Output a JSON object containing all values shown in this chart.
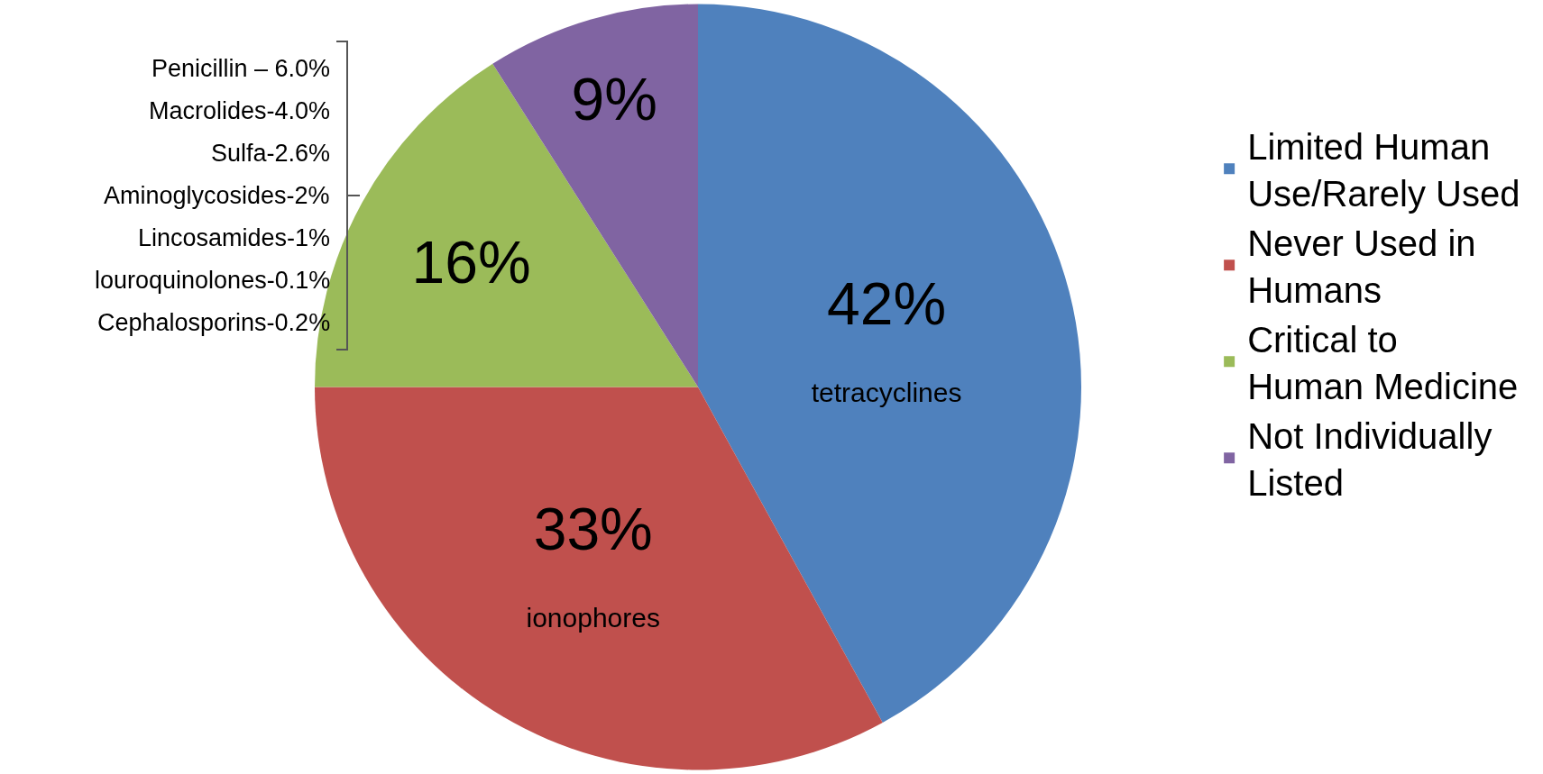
{
  "chart_data": {
    "type": "pie",
    "categories": [
      "Limited Human Use/Rarely Used",
      "Never Used in Humans",
      "Critical to Human Medicine",
      "Not Individually Listed"
    ],
    "values": [
      42,
      33,
      16,
      9
    ],
    "colors": [
      "#4f81bd",
      "#c0504d",
      "#9bbb59",
      "#8064a2"
    ],
    "value_labels": [
      "42%\ntetracyclines",
      "33%\nionophores",
      "16%",
      "9%"
    ],
    "legend": "right",
    "annotations": [
      "Penicillin – 6.0%",
      "Macrolides-4.0%",
      "Sulfa-2.6%",
      "Aminoglycosides-2%",
      "Lincosamides-1%",
      "louroquinolones-0.1%",
      "Cephalosporins-0.2%"
    ]
  }
}
